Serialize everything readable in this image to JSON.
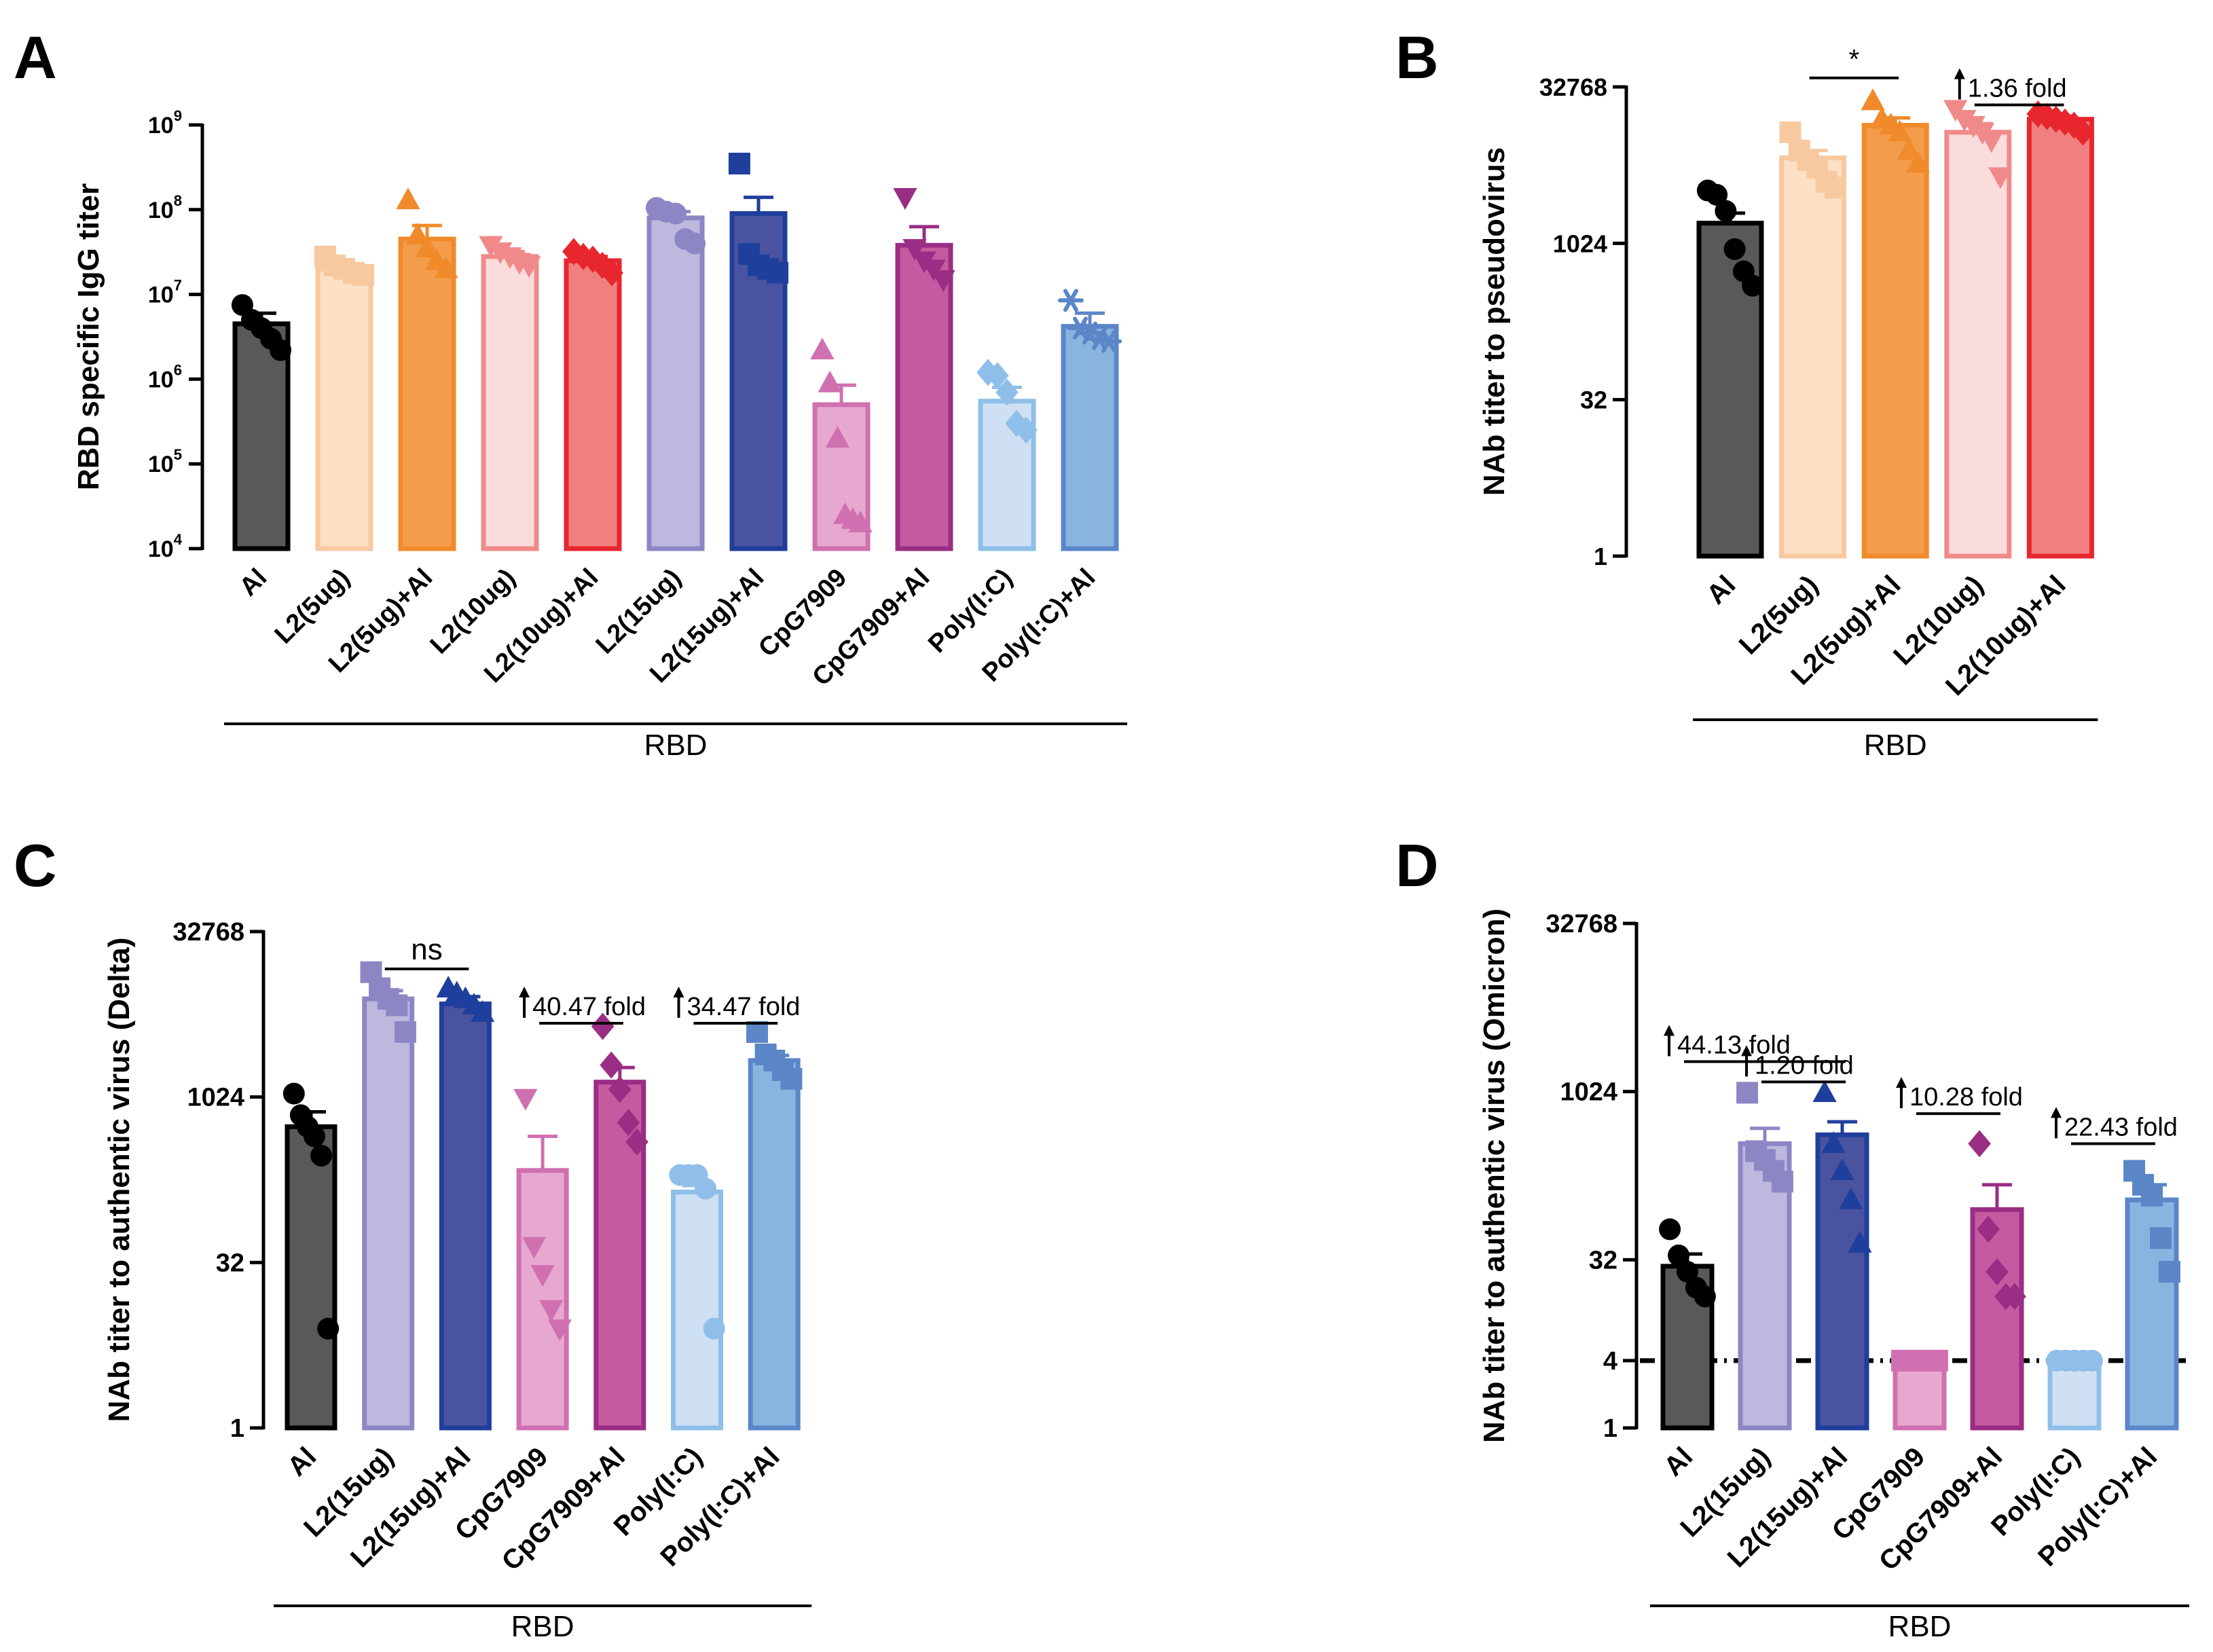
{
  "chart_data": [
    {
      "panel": "A",
      "type": "bar",
      "ylabel": "RBD specific IgG titer",
      "yscale": "log10",
      "ylim": [
        10000,
        1000000000
      ],
      "yticks": [
        {
          "value": 10000,
          "base": "10",
          "exp": "4"
        },
        {
          "value": 100000,
          "base": "10",
          "exp": "5"
        },
        {
          "value": 1000000,
          "base": "10",
          "exp": "6"
        },
        {
          "value": 10000000,
          "base": "10",
          "exp": "7"
        },
        {
          "value": 100000000,
          "base": "10",
          "exp": "8"
        },
        {
          "value": 1000000000,
          "base": "10",
          "exp": "9"
        }
      ],
      "group_label": "RBD",
      "bars": [
        {
          "label": "Al",
          "mean": 4500000,
          "sem": 1500000,
          "points": [
            7500000,
            5000000,
            4000000,
            3000000,
            2200000
          ],
          "marker": "circle",
          "fill": "#595959",
          "edge": "#000000",
          "pt": "#000000"
        },
        {
          "label": "L2(5ug)",
          "mean": 20000000,
          "sem": 2500000,
          "points": [
            28000000,
            22000000,
            20000000,
            18000000,
            17000000
          ],
          "marker": "square",
          "fill": "#fde0c5",
          "edge": "#f8c9a0",
          "pt": "#f8c9a0"
        },
        {
          "label": "L2(5ug)+Al",
          "mean": 45000000,
          "sem": 20000000,
          "points": [
            130000000,
            50000000,
            35000000,
            25000000,
            20000000
          ],
          "marker": "triangle",
          "fill": "#f39d4c",
          "edge": "#f08a2a",
          "pt": "#f08a2a"
        },
        {
          "label": "L2(10ug)",
          "mean": 28000000,
          "sem": 4000000,
          "points": [
            38000000,
            32000000,
            28000000,
            24000000,
            22000000
          ],
          "marker": "triangle-down",
          "fill": "#fadcdc",
          "edge": "#f08a8a",
          "pt": "#f08a8a"
        },
        {
          "label": "L2(10ug)+Al",
          "mean": 25000000,
          "sem": 3000000,
          "points": [
            32000000,
            28000000,
            26000000,
            22000000,
            18000000
          ],
          "marker": "diamond",
          "fill": "#f08080",
          "edge": "#e8262d",
          "pt": "#e8262d"
        },
        {
          "label": "L2(15ug)",
          "mean": 80000000,
          "sem": 15000000,
          "points": [
            105000000,
            95000000,
            90000000,
            45000000,
            40000000
          ],
          "marker": "circle",
          "fill": "#bcb8de",
          "edge": "#8c87c4",
          "pt": "#8c87c4"
        },
        {
          "label": "L2(15ug)+Al",
          "mean": 90000000,
          "sem": 50000000,
          "points": [
            350000000,
            30000000,
            22000000,
            20000000,
            18000000
          ],
          "marker": "square",
          "fill": "#4a53a0",
          "edge": "#1f3f9c",
          "pt": "#1f3f9c"
        },
        {
          "label": "CpG7909",
          "mean": 500000,
          "sem": 350000,
          "points": [
            2200000,
            900000,
            200000,
            25000,
            22000,
            20000
          ],
          "marker": "triangle",
          "fill": "#e7a8d0",
          "edge": "#d070b0",
          "pt": "#d070b0"
        },
        {
          "label": "CpG7909+Al",
          "mean": 38000000,
          "sem": 25000000,
          "points": [
            140000000,
            35000000,
            25000000,
            20000000,
            15000000
          ],
          "marker": "triangle-down",
          "fill": "#c55aa1",
          "edge": "#9a2d84",
          "pt": "#9a2d84"
        },
        {
          "label": "Poly(I:C)",
          "mean": 550000,
          "sem": 250000,
          "points": [
            1200000,
            1100000,
            700000,
            300000,
            250000
          ],
          "marker": "diamond",
          "fill": "#cfe0f5",
          "edge": "#8fbfe8",
          "pt": "#8fbfe8"
        },
        {
          "label": "Poly(I:C)+Al",
          "mean": 4200000,
          "sem": 1800000,
          "points": [
            8500000,
            4000000,
            3500000,
            3000000,
            2800000
          ],
          "marker": "asterisk",
          "fill": "#8ab4e0",
          "edge": "#5b86c7",
          "pt": "#5b86c7"
        }
      ],
      "annotations": []
    },
    {
      "panel": "B",
      "type": "bar",
      "ylabel": "NAb titer to pseudovirus",
      "yscale": "log2",
      "ylim": [
        1,
        32768
      ],
      "yticks": [
        {
          "value": 1,
          "label": "1"
        },
        {
          "value": 32,
          "label": "32"
        },
        {
          "value": 1024,
          "label": "1024"
        },
        {
          "value": 32768,
          "label": "32768"
        }
      ],
      "group_label": "RBD",
      "bars": [
        {
          "label": "Al",
          "mean": 1600,
          "sem": 400,
          "points": [
            3300,
            3000,
            2100,
            900,
            550,
            400
          ],
          "marker": "circle",
          "fill": "#595959",
          "edge": "#000000",
          "pt": "#000000"
        },
        {
          "label": "L2(5ug)",
          "mean": 6800,
          "sem": 1200,
          "points": [
            12000,
            8000,
            6500,
            5500,
            4000,
            3500
          ],
          "marker": "square",
          "fill": "#fde0c5",
          "edge": "#f8c9a0",
          "pt": "#f8c9a0"
        },
        {
          "label": "L2(5ug)+Al",
          "mean": 14000,
          "sem": 2500,
          "points": [
            24000,
            16000,
            14000,
            12000,
            8000,
            6000
          ],
          "marker": "triangle",
          "fill": "#f39d4c",
          "edge": "#f08a2a",
          "pt": "#f08a2a"
        },
        {
          "label": "L2(10ug)",
          "mean": 12000,
          "sem": 2500,
          "points": [
            20000,
            16000,
            14000,
            12000,
            10000,
            4500
          ],
          "marker": "triangle-down",
          "fill": "#fadcdc",
          "edge": "#f08a8a",
          "pt": "#f08a8a"
        },
        {
          "label": "L2(10ug)+Al",
          "mean": 16000,
          "sem": 1200,
          "points": [
            18000,
            17000,
            16000,
            15000,
            14000,
            12000
          ],
          "marker": "diamond",
          "fill": "#f08080",
          "edge": "#e8262d",
          "pt": "#e8262d"
        }
      ],
      "annotations": [
        {
          "text": "*",
          "from": 1,
          "to": 2,
          "y": 40000
        },
        {
          "text": "1.36 fold",
          "arrow": true,
          "from": 3,
          "to": 4,
          "y": 22000
        }
      ]
    },
    {
      "panel": "C",
      "type": "bar",
      "ylabel": "NAb titer to authentic virus (Delta)",
      "yscale": "log2",
      "ylim": [
        1,
        32768
      ],
      "yticks": [
        {
          "value": 1,
          "label": "1"
        },
        {
          "value": 32,
          "label": "32"
        },
        {
          "value": 1024,
          "label": "1024"
        },
        {
          "value": 32768,
          "label": "32768"
        }
      ],
      "group_label": "RBD",
      "bars": [
        {
          "label": "Al",
          "mean": 550,
          "sem": 200,
          "points": [
            1100,
            700,
            550,
            450,
            300,
            8
          ],
          "marker": "circle",
          "fill": "#595959",
          "edge": "#000000",
          "pt": "#000000"
        },
        {
          "label": "L2(15ug)",
          "mean": 8000,
          "sem": 1500,
          "points": [
            14000,
            10000,
            8000,
            7000,
            4000
          ],
          "marker": "square",
          "fill": "#bcb8de",
          "edge": "#8c87c4",
          "pt": "#8c87c4"
        },
        {
          "label": "L2(15ug)+Al",
          "mean": 7200,
          "sem": 1200,
          "points": [
            10000,
            9000,
            8000,
            7000,
            6000
          ],
          "marker": "triangle",
          "fill": "#4a53a0",
          "edge": "#1f3f9c",
          "pt": "#1f3f9c"
        },
        {
          "label": "CpG7909",
          "mean": 220,
          "sem": 230,
          "points": [
            1000,
            45,
            25,
            12,
            8
          ],
          "marker": "triangle-down",
          "fill": "#e7a8d0",
          "edge": "#d070b0",
          "pt": "#d070b0"
        },
        {
          "label": "CpG7909+Al",
          "mean": 1400,
          "sem": 500,
          "points": [
            4500,
            2000,
            1200,
            600,
            400
          ],
          "marker": "diamond",
          "fill": "#c55aa1",
          "edge": "#9a2d84",
          "pt": "#9a2d84"
        },
        {
          "label": "Poly(I:C)",
          "mean": 140,
          "sem": 20,
          "points": [
            200,
            200,
            200,
            150,
            8
          ],
          "marker": "circle",
          "fill": "#cfe0f5",
          "edge": "#8fbfe8",
          "pt": "#8fbfe8"
        },
        {
          "label": "Poly(I:C)+Al",
          "mean": 2200,
          "sem": 250,
          "points": [
            4000,
            2500,
            2200,
            1800,
            1500
          ],
          "marker": "square",
          "fill": "#8ab4e0",
          "edge": "#5b86c7",
          "pt": "#5b86c7"
        }
      ],
      "annotations": [
        {
          "text": "ns",
          "from": 1,
          "to": 2,
          "y": 15000
        },
        {
          "text": "40.47 fold",
          "arrow": true,
          "from": 3,
          "to": 4,
          "y": 4800
        },
        {
          "text": "34.47 fold",
          "arrow": true,
          "from": 5,
          "to": 6,
          "y": 4800
        }
      ]
    },
    {
      "panel": "D",
      "type": "bar",
      "ylabel": "NAb titer to authentic virus (Omicron)",
      "yscale": "log2",
      "ylim": [
        1,
        32768
      ],
      "yticks": [
        {
          "value": 1,
          "label": "1"
        },
        {
          "value": 4,
          "label": "4"
        },
        {
          "value": 32,
          "label": "32"
        },
        {
          "value": 1024,
          "label": "1024"
        },
        {
          "value": 32768,
          "label": "32768"
        }
      ],
      "reference_line": 4,
      "group_label": "RBD",
      "bars": [
        {
          "label": "Al",
          "mean": 28,
          "sem": 8,
          "points": [
            60,
            35,
            25,
            18,
            15
          ],
          "marker": "circle",
          "fill": "#595959",
          "edge": "#000000",
          "pt": "#000000"
        },
        {
          "label": "L2(15ug)",
          "mean": 350,
          "sem": 130,
          "points": [
            1000,
            300,
            250,
            200,
            160
          ],
          "marker": "square",
          "fill": "#bcb8de",
          "edge": "#8c87c4",
          "pt": "#8c87c4"
        },
        {
          "label": "L2(15ug)+Al",
          "mean": 420,
          "sem": 130,
          "points": [
            1000,
            350,
            200,
            110,
            45
          ],
          "marker": "triangle",
          "fill": "#4a53a0",
          "edge": "#1f3f9c",
          "pt": "#1f3f9c"
        },
        {
          "label": "CpG7909",
          "mean": 4,
          "sem": 0,
          "points": [
            4,
            4,
            4,
            4,
            4
          ],
          "marker": "square",
          "fill": "#e7a8d0",
          "edge": "#d070b0",
          "pt": "#d070b0"
        },
        {
          "label": "CpG7909+Al",
          "mean": 90,
          "sem": 60,
          "points": [
            350,
            60,
            25,
            15,
            15
          ],
          "marker": "diamond",
          "fill": "#c55aa1",
          "edge": "#9a2d84",
          "pt": "#9a2d84"
        },
        {
          "label": "Poly(I:C)",
          "mean": 4,
          "sem": 0,
          "points": [
            4,
            4,
            4,
            4,
            4
          ],
          "marker": "circle",
          "fill": "#cfe0f5",
          "edge": "#8fbfe8",
          "pt": "#8fbfe8"
        },
        {
          "label": "Poly(I:C)+Al",
          "mean": 110,
          "sem": 40,
          "points": [
            200,
            150,
            120,
            50,
            25
          ],
          "marker": "square",
          "fill": "#8ab4e0",
          "edge": "#5b86c7",
          "pt": "#5b86c7"
        }
      ],
      "annotations": [
        {
          "text": "44.13 fold",
          "arrow": true,
          "from": 0,
          "to": 2,
          "y": 1900
        },
        {
          "text": "1.20 fold",
          "arrow": true,
          "from": 1,
          "to": 2,
          "y": 1250
        },
        {
          "text": "10.28 fold",
          "arrow": true,
          "from": 3,
          "to": 4,
          "y": 650
        },
        {
          "text": "22.43 fold",
          "arrow": true,
          "from": 5,
          "to": 6,
          "y": 350
        }
      ]
    }
  ]
}
